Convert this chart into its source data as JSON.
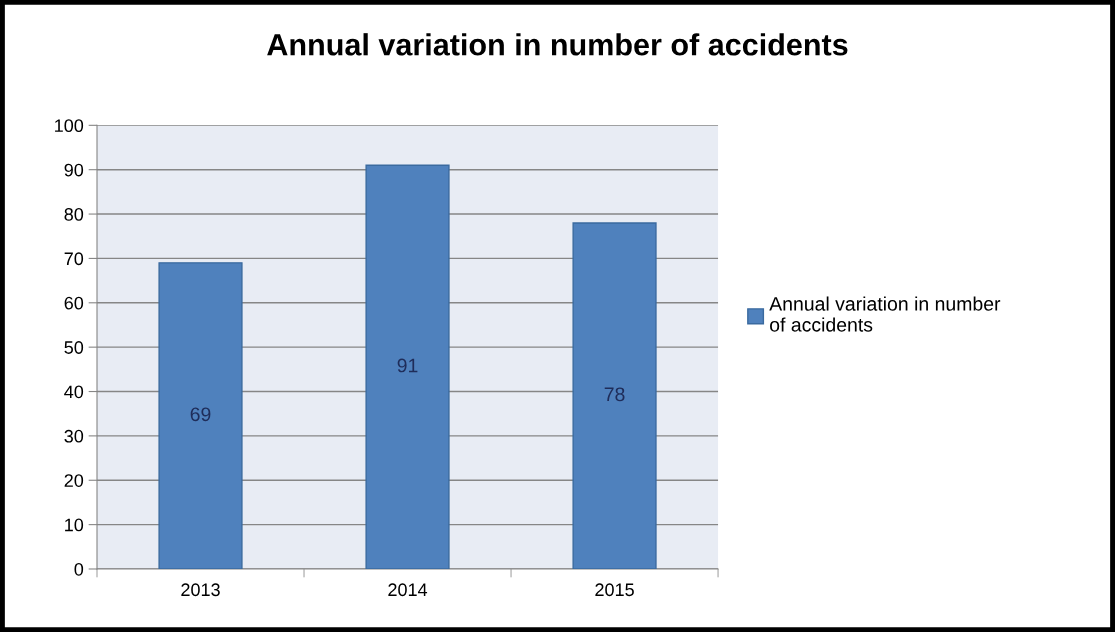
{
  "chart_data": {
    "type": "bar",
    "title": "Annual variation in number of accidents",
    "categories": [
      "2013",
      "2014",
      "2015"
    ],
    "series": [
      {
        "name": "Annual variation in number of accidents",
        "color": "#4f81bd",
        "values": [
          69,
          91,
          78
        ]
      }
    ],
    "ylim": [
      0,
      100
    ],
    "yticks": [
      0,
      10,
      20,
      30,
      40,
      50,
      60,
      70,
      80,
      90,
      100
    ],
    "grid": "y",
    "legend": "right",
    "data_labels": true
  }
}
